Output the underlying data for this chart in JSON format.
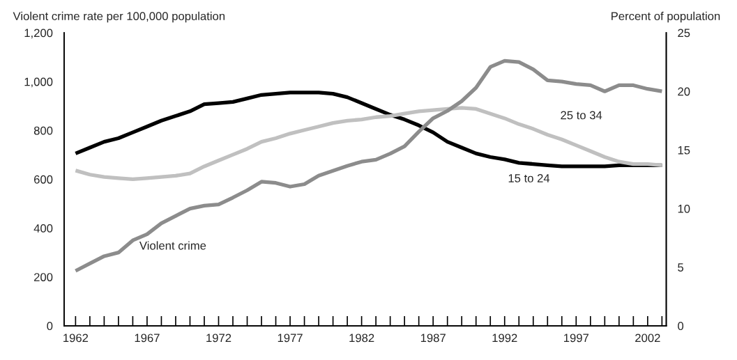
{
  "chart_data": {
    "type": "line",
    "ylabel": "Violent crime rate per 100,000 population",
    "y2label": "Percent of population",
    "x": [
      1962,
      1963,
      1964,
      1965,
      1966,
      1967,
      1968,
      1969,
      1970,
      1971,
      1972,
      1973,
      1974,
      1975,
      1976,
      1977,
      1978,
      1979,
      1980,
      1981,
      1982,
      1983,
      1984,
      1985,
      1986,
      1987,
      1988,
      1989,
      1990,
      1991,
      1992,
      1993,
      1994,
      1995,
      1996,
      1997,
      1998,
      1999,
      2000,
      2001,
      2002,
      2003
    ],
    "series": [
      {
        "name": "Violent crime",
        "color": "#8c8c8c",
        "values": [
          225,
          255,
          285,
          300,
          350,
          375,
          420,
          450,
          480,
          492,
          497,
          525,
          555,
          590,
          585,
          570,
          580,
          615,
          635,
          655,
          672,
          680,
          705,
          735,
          795,
          850,
          880,
          920,
          975,
          1060,
          1085,
          1080,
          1050,
          1005,
          1000,
          990,
          985,
          960,
          985,
          985,
          970,
          960
        ]
      },
      {
        "name": "15 to 24",
        "color": "#000000",
        "axis": "y2",
        "values": [
          14.7,
          15.2,
          15.7,
          16.0,
          16.5,
          17.0,
          17.5,
          17.9,
          18.3,
          18.9,
          19.0,
          19.1,
          19.4,
          19.7,
          19.8,
          19.9,
          19.9,
          19.9,
          19.8,
          19.5,
          19.0,
          18.5,
          18.0,
          17.6,
          17.1,
          16.5,
          15.7,
          15.2,
          14.7,
          14.4,
          14.2,
          13.9,
          13.8,
          13.7,
          13.6,
          13.6,
          13.6,
          13.6,
          13.7,
          13.7,
          13.7,
          13.7
        ]
      },
      {
        "name": "25 to 34",
        "color": "#c0c0c0",
        "axis": "y2",
        "values": [
          13.25,
          12.9,
          12.7,
          12.6,
          12.5,
          12.6,
          12.7,
          12.8,
          13.0,
          13.6,
          14.1,
          14.6,
          15.1,
          15.7,
          16.0,
          16.4,
          16.7,
          17.0,
          17.3,
          17.5,
          17.6,
          17.8,
          17.9,
          18.1,
          18.3,
          18.4,
          18.5,
          18.6,
          18.5,
          18.1,
          17.7,
          17.2,
          16.8,
          16.3,
          15.9,
          15.4,
          14.9,
          14.4,
          14.0,
          13.8,
          13.8,
          13.7
        ]
      }
    ],
    "xlim": [
      1961.2,
      2003.3
    ],
    "xticks": [
      1962,
      {
        "value": 1963,
        "label": null
      },
      {
        "value": 1964,
        "label": null
      },
      {
        "value": 1965,
        "label": null
      },
      {
        "value": 1966,
        "label": null
      },
      1967,
      {
        "value": 1968,
        "label": null
      },
      {
        "value": 1969,
        "label": null
      },
      {
        "value": 1970,
        "label": null
      },
      {
        "value": 1971,
        "label": null
      },
      1972,
      {
        "value": 1973,
        "label": null
      },
      {
        "value": 1974,
        "label": null
      },
      {
        "value": 1975,
        "label": null
      },
      {
        "value": 1976,
        "label": null
      },
      1977,
      {
        "value": 1978,
        "label": null
      },
      {
        "value": 1979,
        "label": null
      },
      {
        "value": 1980,
        "label": null
      },
      {
        "value": 1981,
        "label": null
      },
      1982,
      {
        "value": 1983,
        "label": null
      },
      {
        "value": 1984,
        "label": null
      },
      {
        "value": 1985,
        "label": null
      },
      {
        "value": 1986,
        "label": null
      },
      1987,
      {
        "value": 1988,
        "label": null
      },
      {
        "value": 1989,
        "label": null
      },
      {
        "value": 1990,
        "label": null
      },
      {
        "value": 1991,
        "label": null
      },
      1992,
      {
        "value": 1993,
        "label": null
      },
      {
        "value": 1994,
        "label": null
      },
      {
        "value": 1995,
        "label": null
      },
      {
        "value": 1996,
        "label": null
      },
      1997,
      {
        "value": 1998,
        "label": null
      },
      {
        "value": 1999,
        "label": null
      },
      {
        "value": 2000,
        "label": null
      },
      {
        "value": 2001,
        "label": null
      },
      2002,
      {
        "value": 2003,
        "label": null
      }
    ],
    "ylim": [
      0,
      1200
    ],
    "yticks": [
      0,
      200,
      400,
      600,
      800,
      {
        "value": 1000,
        "label": "1,000"
      },
      {
        "value": 1200,
        "label": "1,200"
      }
    ],
    "y2lim": [
      0,
      25
    ],
    "y2ticks": [
      0,
      5,
      10,
      15,
      20,
      25
    ],
    "grid": false,
    "legend": false,
    "marker": "none",
    "line_style": "solid"
  }
}
